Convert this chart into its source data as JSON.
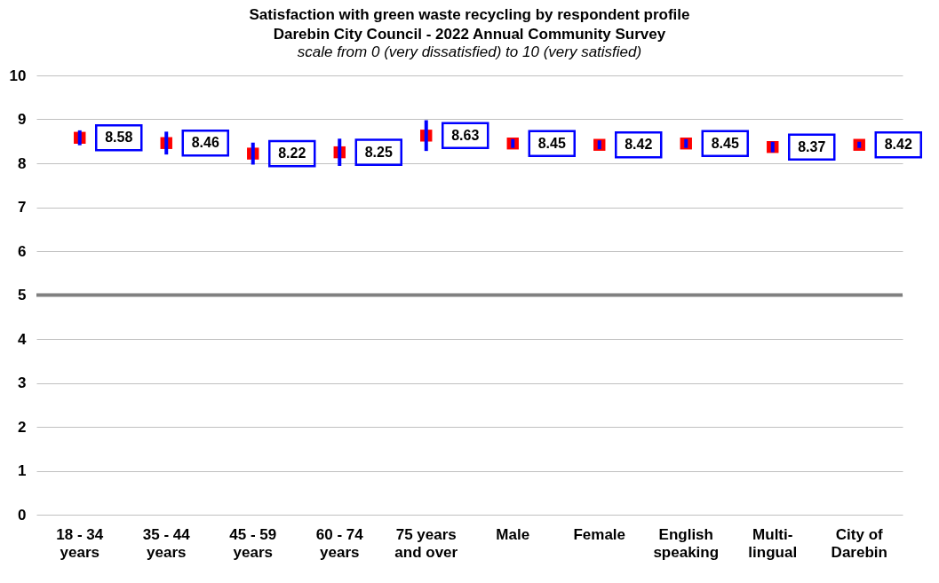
{
  "chart_data": {
    "type": "scatter",
    "title": "Satisfaction with green waste recycling by respondent profile",
    "subtitle": "Darebin City Council - 2022 Annual Community Survey",
    "annotations": [
      "scale from 0 (very dissatisfied) to 10 (very satisfied)"
    ],
    "categories": [
      "18 - 34\nyears",
      "35 - 44\nyears",
      "45 - 59\nyears",
      "60 - 74\nyears",
      "75 years\nand over",
      "Male",
      "Female",
      "English\nspeaking",
      "Multi-\nlingual",
      "City of\nDarebin"
    ],
    "series": [
      {
        "color": "#ff0000",
        "values": [
          8.58,
          8.46,
          8.22,
          8.25,
          8.63,
          8.45,
          8.42,
          8.45,
          8.37,
          8.42
        ],
        "errors": [
          0.17,
          0.26,
          0.25,
          0.31,
          0.35,
          0.1,
          0.1,
          0.1,
          0.12,
          0.07
        ]
      }
    ],
    "ylim": [
      0,
      10
    ],
    "yticks": [
      0,
      1,
      2,
      3,
      4,
      5,
      6,
      7,
      8,
      9,
      10
    ],
    "grid": "y",
    "marker": "square",
    "data_labels": true,
    "ref_lines": [
      {
        "axis": "y",
        "value": 5,
        "color": "#808080"
      }
    ]
  }
}
